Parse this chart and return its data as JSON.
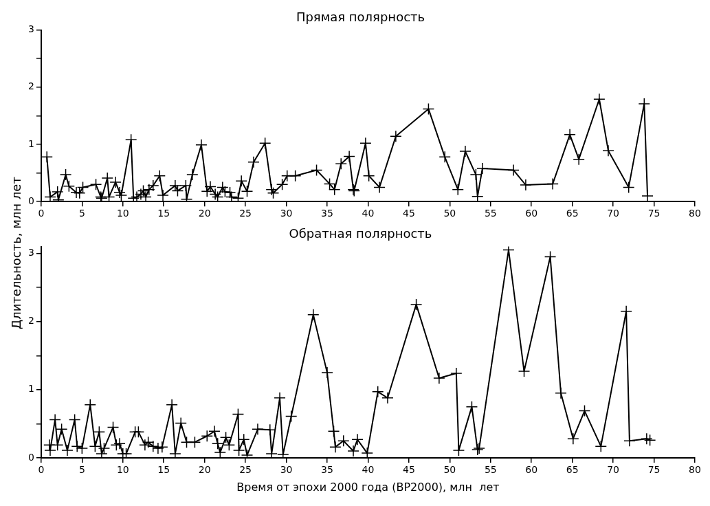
{
  "chart_data": [
    {
      "type": "line",
      "title": "Прямая полярность",
      "ylabel": "Длительность, млн  лет",
      "marker": "cross",
      "grid": false,
      "legend": false,
      "xlim": [
        0,
        80
      ],
      "xticks": [
        0,
        5,
        10,
        15,
        20,
        25,
        30,
        35,
        40,
        45,
        50,
        55,
        60,
        65,
        70,
        75,
        80
      ],
      "ylim": [
        0,
        3
      ],
      "yticks": [
        0,
        {
          "value": 0.5,
          "label": null
        },
        1,
        {
          "value": 1.5,
          "label": null
        },
        2,
        {
          "value": 2.5,
          "label": null
        },
        3
      ],
      "series": [
        {
          "color": "#000000",
          "x": [
            0.7,
            1.1,
            2.0,
            2.1,
            3.0,
            3.4,
            4.3,
            4.7,
            5.1,
            6.7,
            7.3,
            7.4,
            8.1,
            8.3,
            9.1,
            9.6,
            9.8,
            11.0,
            11.3,
            11.7,
            12.2,
            12.5,
            12.8,
            13.2,
            13.7,
            14.5,
            14.9,
            16.4,
            16.7,
            17.7,
            17.8,
            18.5,
            19.6,
            20.3,
            20.7,
            21.3,
            21.6,
            22.2,
            22.5,
            23.1,
            23.3,
            24.1,
            24.5,
            25.2,
            26.0,
            27.4,
            28.2,
            28.4,
            29.5,
            30.1,
            31.1,
            33.7,
            35.3,
            35.9,
            36.7,
            37.7,
            38.2,
            38.3,
            39.7,
            40.1,
            41.4,
            43.4,
            47.4,
            49.4,
            51.0,
            51.9,
            53.2,
            53.4,
            54.0,
            57.8,
            59.3,
            62.6,
            64.7,
            65.8,
            68.3,
            69.4,
            71.9,
            73.8,
            74.2
          ],
          "values": [
            0.78,
            0.08,
            0.17,
            0.03,
            0.47,
            0.27,
            0.16,
            0.15,
            0.25,
            0.3,
            0.08,
            0.06,
            0.41,
            0.08,
            0.34,
            0.16,
            0.11,
            1.08,
            0.06,
            0.08,
            0.13,
            0.19,
            0.08,
            0.21,
            0.28,
            0.45,
            0.11,
            0.28,
            0.19,
            0.28,
            0.04,
            0.47,
            0.99,
            0.18,
            0.26,
            0.13,
            0.08,
            0.25,
            0.17,
            0.16,
            0.08,
            0.06,
            0.36,
            0.18,
            0.69,
            1.02,
            0.21,
            0.15,
            0.3,
            0.45,
            0.45,
            0.55,
            0.31,
            0.21,
            0.66,
            0.79,
            0.21,
            0.19,
            1.02,
            0.45,
            0.25,
            1.14,
            1.62,
            0.78,
            0.21,
            0.88,
            0.47,
            0.09,
            0.58,
            0.55,
            0.29,
            0.31,
            1.17,
            0.74,
            1.79,
            0.89,
            0.25,
            1.71,
            0.1
          ]
        }
      ]
    },
    {
      "type": "line",
      "title": "Обратная полярность",
      "xlabel": "Время от эпохи 2000 года (BP2000), млн  лет",
      "marker": "cross",
      "grid": false,
      "legend": false,
      "xlim": [
        0,
        80
      ],
      "xticks": [
        0,
        5,
        10,
        15,
        20,
        25,
        30,
        35,
        40,
        45,
        50,
        55,
        60,
        65,
        70,
        75,
        80
      ],
      "ylim": [
        0,
        3.1
      ],
      "yticks": [
        0,
        {
          "value": 0.5,
          "label": null
        },
        1,
        {
          "value": 1.5,
          "label": null
        },
        2,
        {
          "value": 2.5,
          "label": null
        },
        3
      ],
      "series": [
        {
          "color": "#000000",
          "x": [
            1.0,
            1.1,
            1.7,
            2.0,
            2.5,
            3.2,
            4.1,
            4.4,
            5.0,
            6.0,
            6.6,
            7.1,
            7.4,
            7.7,
            8.8,
            9.2,
            9.6,
            10.0,
            10.4,
            11.5,
            11.9,
            12.7,
            13.1,
            13.7,
            14.3,
            14.8,
            16.0,
            16.4,
            17.1,
            17.8,
            18.8,
            20.3,
            21.2,
            21.6,
            21.9,
            22.6,
            23.0,
            24.1,
            24.2,
            24.8,
            25.2,
            26.5,
            28.0,
            28.2,
            29.2,
            29.6,
            30.6,
            33.3,
            35.0,
            35.8,
            36.0,
            37.0,
            38.2,
            38.7,
            39.9,
            41.2,
            42.4,
            45.9,
            48.7,
            50.8,
            51.1,
            52.7,
            53.4,
            53.6,
            57.2,
            59.1,
            62.3,
            63.6,
            65.1,
            66.5,
            68.5,
            71.6,
            72.0,
            74.1,
            74.5
          ],
          "values": [
            0.19,
            0.11,
            0.56,
            0.19,
            0.42,
            0.11,
            0.56,
            0.17,
            0.14,
            0.78,
            0.17,
            0.38,
            0.06,
            0.14,
            0.45,
            0.19,
            0.21,
            0.06,
            0.06,
            0.38,
            0.38,
            0.19,
            0.23,
            0.17,
            0.14,
            0.16,
            0.78,
            0.06,
            0.51,
            0.23,
            0.23,
            0.32,
            0.39,
            0.21,
            0.08,
            0.3,
            0.19,
            0.64,
            0.11,
            0.27,
            0.04,
            0.42,
            0.41,
            0.06,
            0.88,
            0.05,
            0.61,
            2.1,
            1.25,
            0.39,
            0.16,
            0.25,
            0.1,
            0.27,
            0.07,
            0.97,
            0.88,
            2.25,
            1.17,
            1.24,
            0.11,
            0.75,
            0.12,
            0.14,
            3.05,
            1.27,
            2.95,
            0.95,
            0.28,
            0.69,
            0.17,
            2.15,
            0.25,
            0.28,
            0.26
          ]
        }
      ]
    }
  ]
}
